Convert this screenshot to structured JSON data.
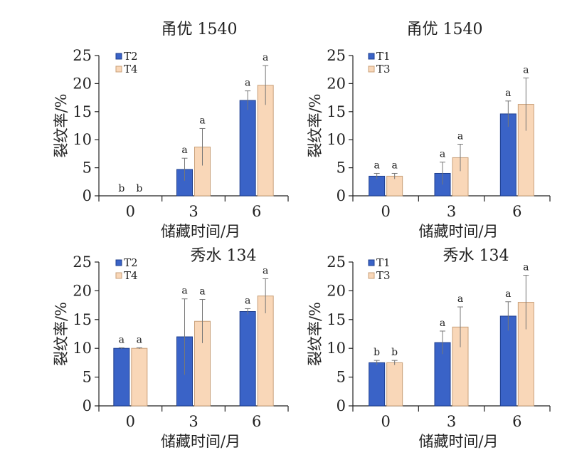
{
  "colors": {
    "series_a": "#3a63c7",
    "series_a_stroke": "#1f3f8f",
    "series_b": "#f9d7b8",
    "series_b_stroke": "#c9a07a"
  },
  "chart_data": [
    {
      "type": "bar",
      "title": "甬优 1540",
      "xlabel": "储藏时间/月",
      "ylabel": "裂纹率/%",
      "categories": [
        "0",
        "3",
        "6"
      ],
      "ylim": [
        0,
        25
      ],
      "yticks": [
        0,
        5,
        10,
        15,
        20,
        25
      ],
      "legend": "top-left",
      "series": [
        {
          "name": "T2",
          "values": [
            0,
            4.7,
            17.0
          ],
          "errors": [
            0,
            2.0,
            1.7
          ],
          "labels": [
            "b",
            "a",
            "a"
          ]
        },
        {
          "name": "T4",
          "values": [
            0,
            8.7,
            19.7
          ],
          "errors": [
            0,
            3.3,
            3.5
          ],
          "labels": [
            "b",
            "a",
            "a"
          ]
        }
      ]
    },
    {
      "type": "bar",
      "title": "甬优 1540",
      "xlabel": "储藏时间/月",
      "ylabel": "裂纹率/%",
      "categories": [
        "0",
        "3",
        "6"
      ],
      "ylim": [
        0,
        25
      ],
      "yticks": [
        0,
        5,
        10,
        15,
        20,
        25
      ],
      "legend": "top-left",
      "series": [
        {
          "name": "T1",
          "values": [
            3.5,
            4.0,
            14.6
          ],
          "errors": [
            0.5,
            2.0,
            2.3
          ],
          "labels": [
            "a",
            "a",
            "a"
          ]
        },
        {
          "name": "T3",
          "values": [
            3.5,
            6.8,
            16.3
          ],
          "errors": [
            0.5,
            2.4,
            4.7
          ],
          "labels": [
            "a",
            "a",
            "a"
          ]
        }
      ]
    },
    {
      "type": "bar",
      "title": "秀水 134",
      "xlabel": "储藏时间/月",
      "ylabel": "裂纹率/%",
      "categories": [
        "0",
        "3",
        "6"
      ],
      "ylim": [
        0,
        25
      ],
      "yticks": [
        0,
        5,
        10,
        15,
        20,
        25
      ],
      "legend": "top-left",
      "series": [
        {
          "name": "T2",
          "values": [
            10.0,
            12.0,
            16.4
          ],
          "errors": [
            0.1,
            6.6,
            0.5
          ],
          "labels": [
            "a",
            "a",
            "a"
          ]
        },
        {
          "name": "T4",
          "values": [
            10.0,
            14.7,
            19.1
          ],
          "errors": [
            0.1,
            3.8,
            3.0
          ],
          "labels": [
            "a",
            "a",
            "a"
          ]
        }
      ]
    },
    {
      "type": "bar",
      "title": "秀水 134",
      "xlabel": "储藏时间/月",
      "ylabel": "裂纹率/%",
      "categories": [
        "0",
        "3",
        "6"
      ],
      "ylim": [
        0,
        25
      ],
      "yticks": [
        0,
        5,
        10,
        15,
        20,
        25
      ],
      "legend": "top-left",
      "series": [
        {
          "name": "T1",
          "values": [
            7.5,
            11.0,
            15.6
          ],
          "errors": [
            0.4,
            2.0,
            2.5
          ],
          "labels": [
            "b",
            "a",
            "a"
          ]
        },
        {
          "name": "T3",
          "values": [
            7.5,
            13.7,
            18.0
          ],
          "errors": [
            0.4,
            3.5,
            4.7
          ],
          "labels": [
            "b",
            "a",
            "a"
          ]
        }
      ]
    }
  ]
}
